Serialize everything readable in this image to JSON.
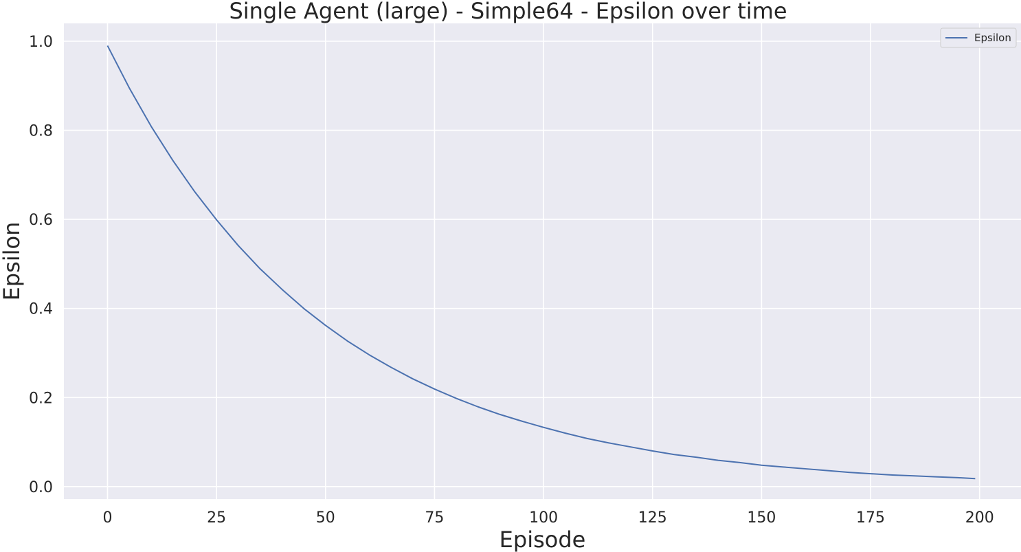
{
  "chart_data": {
    "type": "line",
    "title": "Single Agent (large) - Simple64 - Epsilon over time",
    "xlabel": "Episode",
    "ylabel": "Epsilon",
    "xlim": [
      -10,
      209.5
    ],
    "ylim": [
      -0.028,
      1.04
    ],
    "x_ticks": [
      0,
      25,
      50,
      75,
      100,
      125,
      150,
      175,
      200
    ],
    "y_ticks": [
      0.0,
      0.2,
      0.4,
      0.6,
      0.8,
      1.0
    ],
    "x_tick_labels": [
      "0",
      "25",
      "50",
      "75",
      "100",
      "125",
      "150",
      "175",
      "200"
    ],
    "y_tick_labels": [
      "0.0",
      "0.2",
      "0.4",
      "0.6",
      "0.8",
      "1.0"
    ],
    "grid": true,
    "legend": {
      "position": "top-right",
      "entries": [
        "Epsilon"
      ]
    },
    "series": [
      {
        "name": "Epsilon",
        "color": "#4c72b0",
        "x": [
          0,
          5,
          10,
          15,
          20,
          25,
          30,
          35,
          40,
          45,
          50,
          55,
          60,
          65,
          70,
          75,
          80,
          85,
          90,
          95,
          100,
          105,
          110,
          115,
          120,
          125,
          130,
          135,
          140,
          145,
          150,
          155,
          160,
          165,
          170,
          175,
          180,
          185,
          190,
          195,
          199
        ],
        "values": [
          0.99,
          0.895,
          0.809,
          0.732,
          0.662,
          0.599,
          0.541,
          0.489,
          0.443,
          0.4,
          0.362,
          0.327,
          0.296,
          0.268,
          0.242,
          0.219,
          0.198,
          0.179,
          0.162,
          0.147,
          0.133,
          0.12,
          0.108,
          0.098,
          0.089,
          0.08,
          0.072,
          0.066,
          0.059,
          0.054,
          0.048,
          0.044,
          0.04,
          0.036,
          0.032,
          0.029,
          0.026,
          0.024,
          0.022,
          0.02,
          0.018
        ]
      }
    ]
  }
}
